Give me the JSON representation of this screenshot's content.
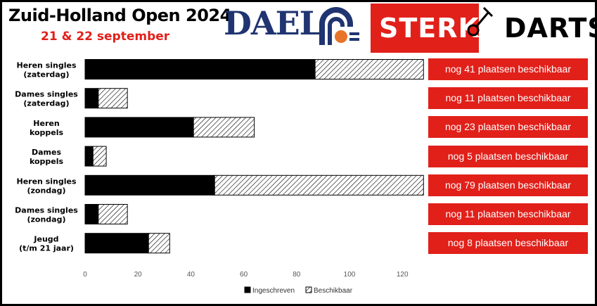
{
  "header": {
    "title": "Zuid-Holland Open 2024",
    "subtitle": "21 & 22 september",
    "subtitle_color": "#e1201a"
  },
  "logos": {
    "dael": {
      "text": "DAEL",
      "color": "#1f3470",
      "accent": "#e8742a"
    },
    "sterk": {
      "left": "STERK",
      "right": "DARTS",
      "color": "#e1201a"
    }
  },
  "chart_data": {
    "type": "bar",
    "orientation": "horizontal",
    "stacked": true,
    "categories": [
      [
        "Heren singles",
        "(zaterdag)"
      ],
      [
        "Dames singles",
        "(zaterdag)"
      ],
      [
        "Heren",
        "koppels"
      ],
      [
        "Dames",
        "koppels"
      ],
      [
        "Heren singles",
        "(zondag)"
      ],
      [
        "Dames singles",
        "(zondag)"
      ],
      [
        "Jeugd",
        "(t/m 21 jaar)"
      ]
    ],
    "series": [
      {
        "name": "Ingeschreven",
        "values": [
          87,
          5,
          41,
          3,
          49,
          5,
          24
        ],
        "fill": "solid",
        "color": "#000000"
      },
      {
        "name": "Beschikbaar",
        "values": [
          41,
          11,
          23,
          5,
          79,
          11,
          8
        ],
        "fill": "hatched",
        "color": "#000000"
      }
    ],
    "xlim": [
      0,
      128
    ],
    "xticks": [
      0,
      20,
      40,
      60,
      80,
      100,
      120
    ],
    "grid": false,
    "legend": "bottom",
    "annotations": [
      "nog 41 plaatsen beschikbaar",
      "nog 11 plaatsen beschikbaar",
      "nog 23 plaatsen beschikbaar",
      "nog 5 plaatsen beschikbaar",
      "nog 79 plaatsen beschikbaar",
      "nog 11 plaatsen beschikbaar",
      "nog 8 plaatsen beschikbaar"
    ],
    "annotation_color": "#e1201a"
  }
}
